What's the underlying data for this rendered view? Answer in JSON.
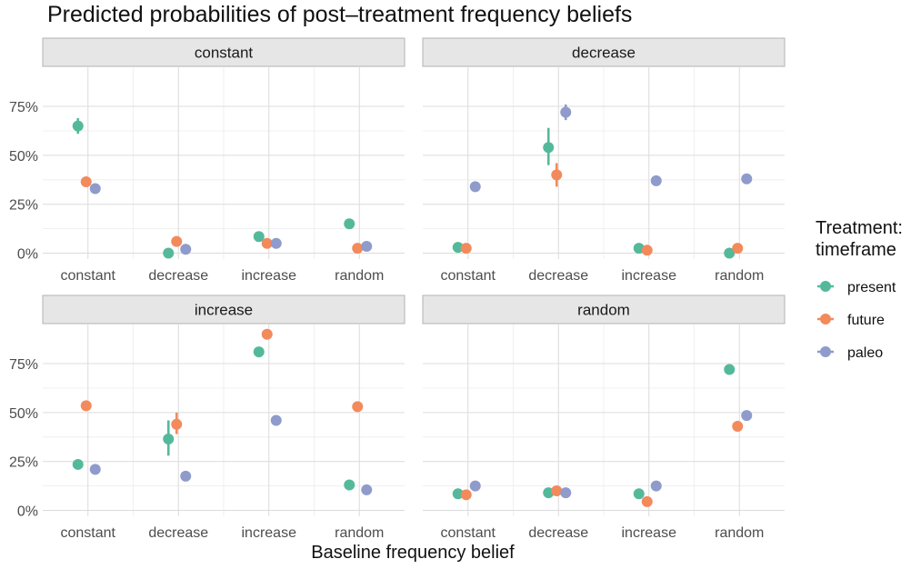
{
  "chart_data": {
    "type": "scatter",
    "title": "Predicted probabilities of post–treatment frequency beliefs",
    "xlabel": "Baseline frequency belief",
    "ylabel": "",
    "categories": [
      "constant",
      "decrease",
      "increase",
      "random"
    ],
    "y_ticks": [
      "0%",
      "25%",
      "50%",
      "75%"
    ],
    "ylim": [
      -0.03,
      0.95
    ],
    "legend": {
      "title_line1": "Treatment:",
      "title_line2": "timeframe",
      "position": "right",
      "items": [
        {
          "name": "present",
          "color": "#54b99a"
        },
        {
          "name": "future",
          "color": "#f28a5c"
        },
        {
          "name": "paleo",
          "color": "#8e9bcb"
        }
      ]
    },
    "panels": [
      {
        "label": "constant",
        "series": {
          "present": {
            "values": [
              0.65,
              0.0,
              0.085,
              0.15
            ],
            "err": [
              [
                0.61,
                0.69
              ],
              null,
              null,
              null
            ]
          },
          "future": {
            "values": [
              0.365,
              0.06,
              0.05,
              0.025
            ],
            "err": [
              null,
              null,
              null,
              null
            ]
          },
          "paleo": {
            "values": [
              0.33,
              0.02,
              0.05,
              0.035
            ],
            "err": [
              null,
              null,
              null,
              null
            ]
          }
        }
      },
      {
        "label": "decrease",
        "series": {
          "present": {
            "values": [
              0.03,
              0.54,
              0.025,
              0.0
            ],
            "err": [
              null,
              [
                0.45,
                0.64
              ],
              null,
              null
            ]
          },
          "future": {
            "values": [
              0.025,
              0.4,
              0.015,
              0.025
            ],
            "err": [
              null,
              [
                0.34,
                0.46
              ],
              null,
              null
            ]
          },
          "paleo": {
            "values": [
              0.34,
              0.72,
              0.37,
              0.38
            ],
            "err": [
              null,
              [
                0.68,
                0.76
              ],
              null,
              null
            ]
          }
        }
      },
      {
        "label": "increase",
        "series": {
          "present": {
            "values": [
              0.235,
              0.365,
              0.81,
              0.13
            ],
            "err": [
              [
                0.21,
                0.26
              ],
              [
                0.28,
                0.46
              ],
              null,
              null
            ]
          },
          "future": {
            "values": [
              0.535,
              0.44,
              0.9,
              0.53
            ],
            "err": [
              null,
              [
                0.39,
                0.5
              ],
              null,
              null
            ]
          },
          "paleo": {
            "values": [
              0.21,
              0.175,
              0.46,
              0.105
            ],
            "err": [
              null,
              null,
              null,
              null
            ]
          }
        }
      },
      {
        "label": "random",
        "series": {
          "present": {
            "values": [
              0.085,
              0.09,
              0.085,
              0.72
            ],
            "err": [
              null,
              null,
              null,
              null
            ]
          },
          "future": {
            "values": [
              0.08,
              0.1,
              0.045,
              0.43
            ],
            "err": [
              null,
              null,
              null,
              null
            ]
          },
          "paleo": {
            "values": [
              0.125,
              0.09,
              0.125,
              0.485
            ],
            "err": [
              null,
              null,
              null,
              null
            ]
          }
        }
      }
    ]
  }
}
